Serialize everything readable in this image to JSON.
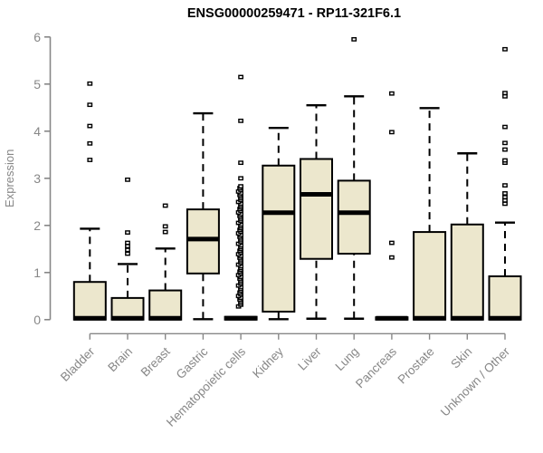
{
  "title": "ENSG00000259471 - RP11-321F6.1",
  "chart_data": {
    "type": "boxplot",
    "title": "ENSG00000259471 - RP11-321F6.1",
    "xlabel": "",
    "ylabel": "Expression",
    "ylim": [
      0,
      6
    ],
    "yticks": [
      0,
      1,
      2,
      3,
      4,
      5,
      6
    ],
    "grid": false,
    "legend": "none",
    "categories": [
      "Bladder",
      "Brain",
      "Breast",
      "Gastric",
      "Hematopoietic cells",
      "Kidney",
      "Liver",
      "Lung",
      "Pancreas",
      "Prostate",
      "Skin",
      "Unknown / Other"
    ],
    "stats_order": [
      "whisker_low",
      "q1",
      "median",
      "q3",
      "whisker_high"
    ],
    "series": [
      {
        "category": "Bladder",
        "stats": [
          0,
          0,
          0.03,
          0.8,
          1.93
        ],
        "outliers": [
          3.39,
          3.74,
          4.11,
          4.56,
          5.01
        ]
      },
      {
        "category": "Brain",
        "stats": [
          0,
          0,
          0.03,
          0.46,
          1.18
        ],
        "outliers": [
          1.4,
          1.48,
          1.56,
          1.63,
          1.85,
          2.97
        ]
      },
      {
        "category": "Breast",
        "stats": [
          0,
          0,
          0.03,
          0.62,
          1.51
        ],
        "outliers": [
          1.86,
          1.98,
          2.42
        ]
      },
      {
        "category": "Gastric",
        "stats": [
          0.01,
          0.98,
          1.71,
          2.34,
          4.38
        ],
        "outliers": []
      },
      {
        "category": "Hematopoietic cells",
        "stats": [
          0,
          0,
          0.03,
          0.06,
          0.06
        ],
        "outliers": [
          3.0,
          3.33,
          4.22,
          5.15
        ],
        "outlier_band": {
          "min": 0.28,
          "max": 2.83,
          "count": 70
        }
      },
      {
        "category": "Kidney",
        "stats": [
          0.01,
          0.17,
          2.27,
          3.27,
          4.07
        ],
        "outliers": []
      },
      {
        "category": "Liver",
        "stats": [
          0.02,
          1.29,
          2.66,
          3.41,
          4.55
        ],
        "outliers": []
      },
      {
        "category": "Lung",
        "stats": [
          0.02,
          1.4,
          2.27,
          2.95,
          4.74
        ],
        "outliers": [
          5.95
        ]
      },
      {
        "category": "Pancreas",
        "stats": [
          0,
          0,
          0.03,
          0.05,
          0.05
        ],
        "outliers": [
          1.32,
          1.63,
          3.98,
          4.8
        ]
      },
      {
        "category": "Prostate",
        "stats": [
          0,
          0,
          0.03,
          1.86,
          4.49
        ],
        "outliers": []
      },
      {
        "category": "Skin",
        "stats": [
          0,
          0,
          0.03,
          2.02,
          3.53
        ],
        "outliers": []
      },
      {
        "category": "Unknown / Other",
        "stats": [
          0,
          0,
          0.03,
          0.92,
          2.06
        ],
        "outliers": [
          2.46,
          2.53,
          2.6,
          2.68,
          2.85,
          3.33,
          3.38,
          3.61,
          3.75,
          4.09,
          4.74,
          4.81,
          5.74
        ]
      }
    ],
    "colors": {
      "box_fill": "#ece7cd",
      "box_stroke": "#000000",
      "median": "#000000",
      "outlier_stroke": "#000000",
      "outlier_fill": "#ffffff",
      "axis": "#878787",
      "tick_label": "#878787",
      "title": "#000000",
      "background": "#ffffff"
    }
  }
}
